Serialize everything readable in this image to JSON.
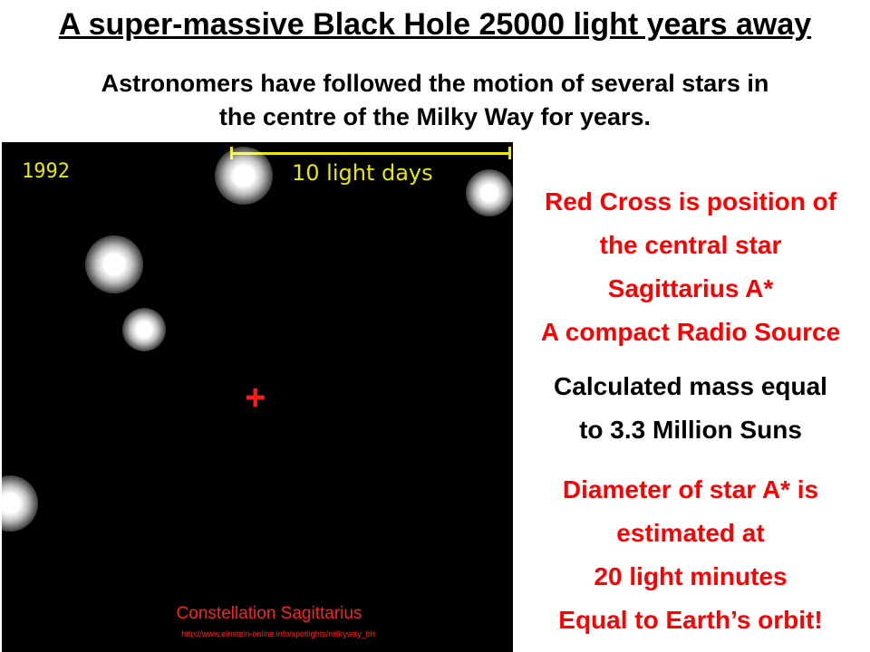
{
  "title": "A super-massive Black Hole 25000  light years away",
  "subtitle_lines": [
    "Astronomers have followed the motion of several stars in",
    "the centre of the Milky Way for years."
  ],
  "image": {
    "year": "1992",
    "scale_label": "10 light days",
    "marker": "+",
    "caption": "Constellation Sagittarius",
    "url": "http://www.einstein-online.info/spotlights/milkyway_bh"
  },
  "info_red_1": [
    "Red Cross is position of",
    "the central star",
    "Sagittarius A*",
    "A compact Radio Source"
  ],
  "info_black": [
    "Calculated mass equal",
    "to 3.3 Million Suns"
  ],
  "info_red_2": [
    "Diameter of star A* is",
    "estimated at",
    "20 light minutes",
    "Equal to Earth’s orbit!"
  ],
  "colors": {
    "accent_red": "#ff0000",
    "overlay_yellow": "#e8e800",
    "image_background": "#000000"
  }
}
